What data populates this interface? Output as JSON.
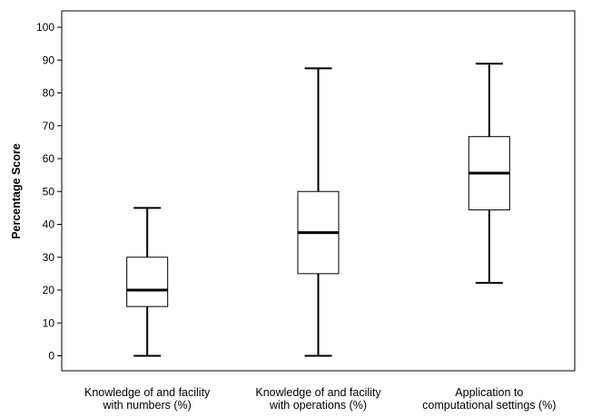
{
  "chart_data": {
    "type": "boxplot",
    "ylabel": "Percentage Score",
    "xlabel": "",
    "ylim": [
      -5,
      105
    ],
    "yticks": [
      0,
      10,
      20,
      30,
      40,
      50,
      60,
      70,
      80,
      90,
      100
    ],
    "grid": false,
    "categories": [
      {
        "lines": [
          "Knowledge of and facility",
          "with numbers (%)"
        ],
        "min": 0,
        "q1": 15,
        "median": 20,
        "q3": 30,
        "max": 45
      },
      {
        "lines": [
          "Knowledge of and facility",
          "with operations (%)"
        ],
        "min": 0,
        "q1": 25,
        "median": 37.5,
        "q3": 50,
        "max": 87.5
      },
      {
        "lines": [
          "Application to",
          "computational settings (%)"
        ],
        "min": 22.2,
        "q1": 44.4,
        "median": 55.6,
        "q3": 66.7,
        "max": 88.9
      }
    ]
  }
}
